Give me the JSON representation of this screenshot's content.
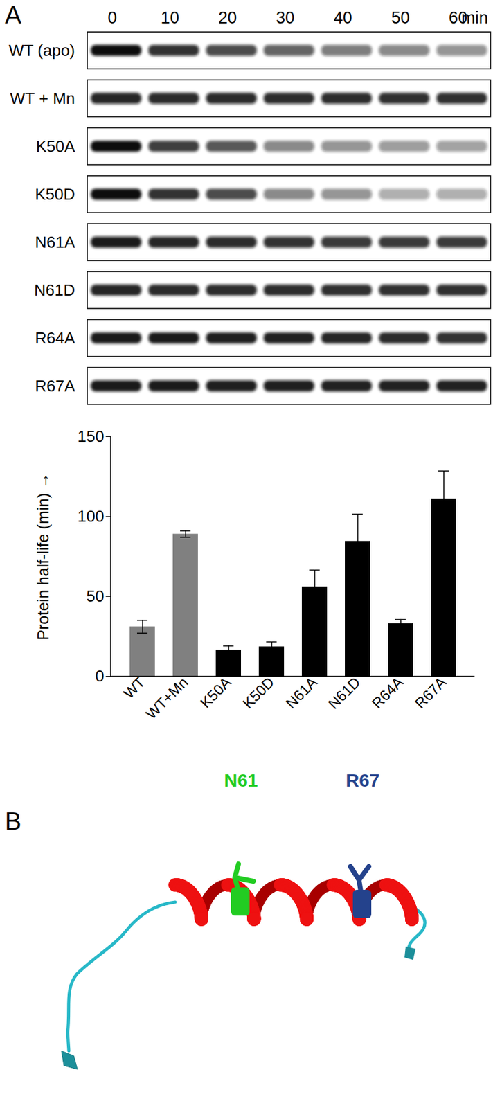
{
  "panel_labels": [
    "A",
    "B"
  ],
  "blot": {
    "timepoints": [
      0,
      10,
      20,
      30,
      40,
      50,
      60
    ],
    "unit": "min",
    "lanes": [
      {
        "label": "WT (apo)",
        "intensities": [
          1.0,
          0.85,
          0.75,
          0.65,
          0.55,
          0.5,
          0.45
        ]
      },
      {
        "label": "WT + Mn",
        "intensities": [
          0.9,
          0.88,
          0.88,
          0.87,
          0.87,
          0.86,
          0.86
        ]
      },
      {
        "label": "K50A",
        "intensities": [
          1.0,
          0.8,
          0.7,
          0.5,
          0.45,
          0.42,
          0.4
        ]
      },
      {
        "label": "K50D",
        "intensities": [
          1.0,
          0.85,
          0.75,
          0.5,
          0.45,
          0.35,
          0.35
        ]
      },
      {
        "label": "N61A",
        "intensities": [
          0.95,
          0.9,
          0.88,
          0.85,
          0.82,
          0.82,
          0.82
        ]
      },
      {
        "label": "N61D",
        "intensities": [
          0.9,
          0.88,
          0.87,
          0.87,
          0.86,
          0.86,
          0.86
        ]
      },
      {
        "label": "R64A",
        "intensities": [
          0.95,
          0.95,
          0.93,
          0.92,
          0.9,
          0.88,
          0.85
        ]
      },
      {
        "label": "R67A",
        "intensities": [
          0.95,
          0.95,
          0.93,
          0.93,
          0.92,
          0.92,
          0.92
        ]
      }
    ]
  },
  "chart_data": {
    "type": "bar",
    "categories": [
      "WT",
      "WT+Mn",
      "K50A",
      "K50D",
      "N61A",
      "N61D",
      "R64A",
      "R67A"
    ],
    "values": [
      31,
      89,
      16.5,
      18.5,
      56,
      84.5,
      33,
      111
    ],
    "errors": [
      4,
      2,
      2.5,
      3,
      10.5,
      17,
      2.5,
      17.5
    ],
    "colors": [
      "#808080",
      "#808080",
      "#000000",
      "#000000",
      "#000000",
      "#000000",
      "#000000",
      "#000000"
    ],
    "ylabel": "Protein half-life (min)",
    "ylim": [
      0,
      150
    ],
    "yticks": [
      0,
      50,
      100,
      150
    ],
    "grid": false
  },
  "structure": {
    "labels": [
      {
        "text": "N61",
        "color": "#22cc22"
      },
      {
        "text": "R67",
        "color": "#24428c"
      }
    ]
  }
}
